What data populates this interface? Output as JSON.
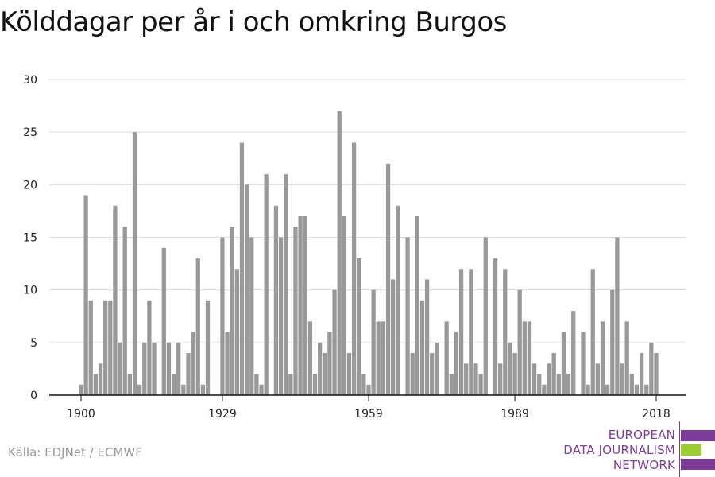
{
  "title": "Kölddagar per år i och omkring Burgos",
  "source": "Källa: EDJNet / ECMWF",
  "logo": {
    "lines": [
      "EUROPEAN",
      "DATA JOURNALISM",
      "NETWORK"
    ],
    "colors": {
      "purple": "#7d3c98",
      "green": "#9acd32"
    }
  },
  "colors": {
    "bar": "#999999",
    "grid": "#dddddd",
    "axis": "#111111",
    "text": "#222222"
  },
  "chart_data": {
    "type": "bar",
    "title": "Kölddagar per år i och omkring Burgos",
    "xlabel": "",
    "ylabel": "",
    "x_start": 1900,
    "x_end": 2018,
    "x_ticks": [
      1900,
      1929,
      1959,
      1989,
      2018
    ],
    "y_ticks": [
      0,
      5,
      10,
      15,
      20,
      25,
      30
    ],
    "ylim": [
      0,
      30
    ],
    "grid": true,
    "values": [
      1,
      19,
      9,
      2,
      3,
      9,
      9,
      18,
      5,
      16,
      2,
      25,
      1,
      5,
      9,
      5,
      0,
      14,
      5,
      2,
      5,
      1,
      4,
      6,
      13,
      1,
      9,
      0,
      0,
      15,
      6,
      16,
      12,
      24,
      20,
      15,
      2,
      1,
      21,
      0,
      18,
      15,
      21,
      2,
      16,
      17,
      17,
      7,
      2,
      5,
      4,
      6,
      10,
      27,
      17,
      4,
      24,
      13,
      2,
      1,
      10,
      7,
      7,
      22,
      11,
      18,
      0,
      15,
      4,
      17,
      9,
      11,
      4,
      5,
      0,
      7,
      2,
      6,
      12,
      3,
      12,
      3,
      2,
      15,
      0,
      13,
      3,
      12,
      5,
      4,
      10,
      7,
      7,
      3,
      2,
      1,
      3,
      4,
      2,
      6,
      2,
      8,
      0,
      6,
      1,
      12,
      3,
      7,
      1,
      10,
      15,
      3,
      7,
      2,
      1,
      4,
      1,
      5,
      4
    ]
  }
}
